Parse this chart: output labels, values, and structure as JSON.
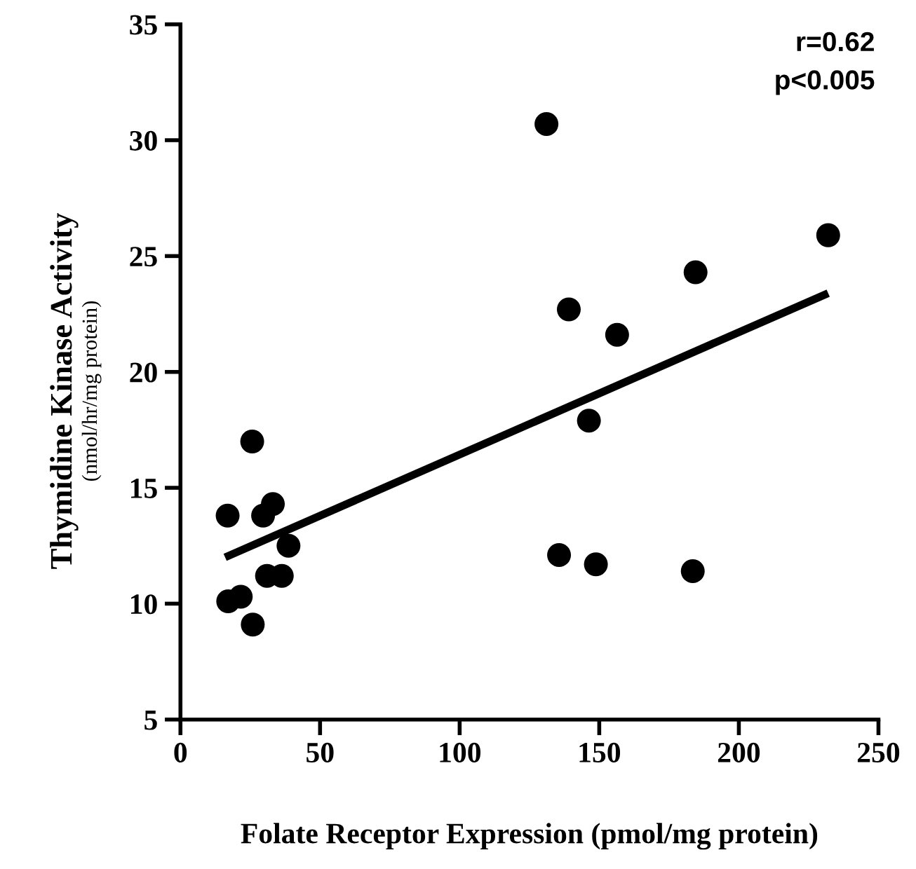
{
  "chart_data": {
    "type": "scatter",
    "xlabel": "Folate Receptor Expression (pmol/mg protein)",
    "ylabel": "Thymidine Kinase Activity\n(nmol/hr/mg protein)",
    "xlim": [
      0,
      250
    ],
    "xticks": [
      0,
      50,
      100,
      150,
      200,
      250
    ],
    "ylim": [
      5,
      35
    ],
    "yticks": [
      5,
      10,
      15,
      20,
      25,
      30,
      35
    ],
    "grid": false,
    "legend": false,
    "annotations": [
      "r=0.62",
      "p<0.005"
    ],
    "series": [
      {
        "type": "scatter",
        "marker": "circle",
        "color": "#000000",
        "x": [
          17.1,
          21.6,
          16.9,
          25.7,
          29.6,
          33.1,
          38.7,
          31,
          36.3,
          25.9,
          131.1,
          232,
          184.5,
          139.1,
          156.4,
          146.3,
          135.6,
          148.8,
          183.5
        ],
        "values": [
          10.1,
          10.3,
          13.8,
          17.0,
          13.8,
          14.3,
          12.5,
          11.2,
          11.2,
          9.1,
          30.7,
          25.9,
          24.3,
          22.7,
          21.6,
          17.9,
          12.1,
          11.7,
          11.4
        ]
      },
      {
        "type": "line",
        "color": "#000000",
        "line_style": "solid",
        "x": [
          16,
          232
        ],
        "values": [
          12.0,
          23.4
        ]
      }
    ]
  }
}
